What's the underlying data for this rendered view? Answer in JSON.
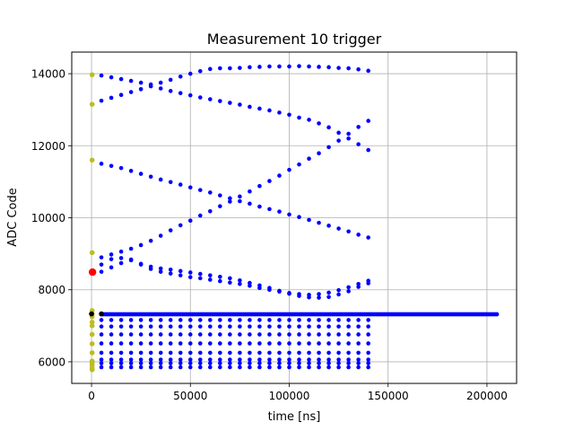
{
  "chart_data": {
    "type": "scatter",
    "title": "Measurement 10 trigger",
    "xlabel": "time [ns]",
    "ylabel": "ADC Code",
    "xlim": [
      -10000,
      215000
    ],
    "ylim": [
      5400,
      14600
    ],
    "xticks": [
      0,
      50000,
      100000,
      150000,
      200000
    ],
    "xtick_labels": [
      "0",
      "50000",
      "100000",
      "150000",
      "200000"
    ],
    "yticks": [
      6000,
      8000,
      10000,
      12000,
      14000
    ],
    "ytick_labels": [
      "6000",
      "8000",
      "10000",
      "12000",
      "14000"
    ],
    "grid": true,
    "colors": {
      "main": "#0000ff",
      "start": "#bcbd22",
      "trigger": "#ff0000",
      "marker": "#000000",
      "grid": "#b0b0b0"
    },
    "series": [
      {
        "color": "#0000ff",
        "description_of_points": "dots every 5000 ns from 5000 to 140000 ns on each track; baseline extends to 205000 ns",
        "x_start": 5000,
        "x_step": 5000,
        "tracks": [
          [
            13950,
            13900,
            13850,
            13800,
            13750,
            13700,
            13750,
            13830,
            13920,
            14000,
            14070,
            14130,
            14150,
            14150,
            14160,
            14180,
            14190,
            14200,
            14200,
            14200,
            14210,
            14200,
            14190,
            14180,
            14160,
            14150,
            14120,
            14080
          ],
          [
            13250,
            13330,
            13410,
            13490,
            13570,
            13650,
            13590,
            13520,
            13460,
            13400,
            13340,
            13290,
            13240,
            13190,
            13140,
            13080,
            13030,
            12980,
            12920,
            12860,
            12780,
            12720,
            12620,
            12510,
            12360,
            12200,
            12040,
            11880
          ],
          [
            11500,
            11440,
            11380,
            11300,
            11220,
            11140,
            11060,
            10990,
            10920,
            10840,
            10770,
            10700,
            10620,
            10540,
            10460,
            10390,
            10310,
            10240,
            10170,
            10090,
            10020,
            9940,
            9860,
            9780,
            9700,
            9620,
            9530,
            9450
          ],
          [
            8900,
            8980,
            9060,
            9140,
            9240,
            9360,
            9500,
            9650,
            9790,
            9920,
            10060,
            10180,
            10320,
            10450,
            10590,
            10730,
            10880,
            11020,
            11170,
            11330,
            11480,
            11640,
            11790,
            11960,
            12140,
            12330,
            12520,
            12690
          ],
          [
            8700,
            8850,
            8880,
            8820,
            8720,
            8640,
            8590,
            8560,
            8520,
            8480,
            8440,
            8400,
            8360,
            8320,
            8260,
            8190,
            8120,
            8050,
            7970,
            7890,
            7830,
            7790,
            7780,
            7800,
            7870,
            7960,
            8080,
            8180
          ],
          [
            8500,
            8620,
            8740,
            8840,
            8700,
            8580,
            8500,
            8450,
            8400,
            8350,
            8320,
            8280,
            8240,
            8200,
            8160,
            8110,
            8050,
            8000,
            7950,
            7910,
            7880,
            7860,
            7880,
            7920,
            7990,
            8070,
            8160,
            8250
          ]
        ],
        "rows": [
          7160,
          6980,
          6760,
          6510,
          6250,
          6060,
          5960,
          5850
        ],
        "baseline": 7320,
        "baseline_x": [
          5000,
          205000
        ]
      },
      {
        "color": "#bcbd22",
        "x": [
          300,
          300,
          300,
          300,
          300,
          300,
          300,
          300,
          300,
          300,
          300,
          300,
          300,
          300,
          300,
          300,
          300
        ],
        "y": [
          13970,
          13150,
          11600,
          9030,
          7420,
          7330,
          7250,
          7100,
          7000,
          6760,
          6500,
          6250,
          6020,
          5960,
          5900,
          5820,
          5780
        ]
      },
      {
        "color": "#ff0000",
        "x": [
          500
        ],
        "y": [
          8490
        ]
      },
      {
        "color": "#000000",
        "x": [
          0,
          5000
        ],
        "y": [
          7330,
          7330
        ]
      }
    ]
  }
}
